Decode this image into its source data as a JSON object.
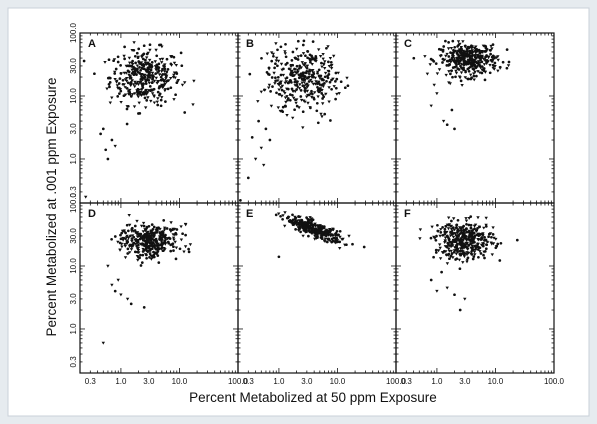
{
  "chart_data": {
    "type": "scatter",
    "xlabel": "Percent Metabolized at 50 ppm Exposure",
    "ylabel": "Percent Metabolized at .001 ppm Exposure",
    "xscale": "log",
    "yscale": "log",
    "xlim": [
      0.2,
      100
    ],
    "ylim": [
      0.2,
      100
    ],
    "x_tick_labels": [
      "0.3",
      "1.0",
      "3.0",
      "10.0",
      "100.0"
    ],
    "x_tick_values": [
      0.3,
      1,
      3,
      10,
      100
    ],
    "y_tick_labels": [
      "0.3",
      "1.0",
      "3.0",
      "10.0",
      "30.0",
      "100.0"
    ],
    "y_tick_values": [
      0.3,
      1,
      3,
      10,
      30,
      100
    ],
    "grid": false,
    "layout": "2 rows x 3 columns",
    "marker_color": "#111111",
    "panels": [
      {
        "label": "A",
        "cloud": {
          "x_center": 2.6,
          "y_center": 20,
          "x_spread": 0.3,
          "y_spread": 0.22,
          "n": 380
        },
        "outliers": [
          [
            0.25,
            0.25
          ],
          [
            0.45,
            2.5
          ],
          [
            0.6,
            1.0
          ],
          [
            0.55,
            1.4
          ],
          [
            0.5,
            3.0
          ],
          [
            0.7,
            2.0
          ],
          [
            0.8,
            1.6
          ]
        ]
      },
      {
        "label": "B",
        "cloud": {
          "x_center": 2.6,
          "y_center": 18,
          "x_spread": 0.32,
          "y_spread": 0.26,
          "n": 360
        },
        "outliers": [
          [
            0.22,
            0.22
          ],
          [
            0.3,
            0.5
          ],
          [
            0.4,
            1.0
          ],
          [
            0.35,
            2.2
          ],
          [
            0.5,
            1.5
          ],
          [
            0.6,
            3.0
          ],
          [
            0.45,
            4.0
          ],
          [
            0.7,
            2.0
          ],
          [
            0.55,
            0.8
          ]
        ]
      },
      {
        "label": "C",
        "cloud": {
          "x_center": 3.5,
          "y_center": 38,
          "x_spread": 0.25,
          "y_spread": 0.13,
          "n": 380
        },
        "outliers": [
          [
            0.8,
            7.0
          ],
          [
            1.0,
            11.0
          ],
          [
            1.3,
            4.0
          ],
          [
            1.5,
            3.5
          ],
          [
            2.0,
            3.0
          ],
          [
            1.8,
            6.0
          ],
          [
            0.9,
            15.0
          ]
        ]
      },
      {
        "label": "D",
        "cloud": {
          "x_center": 3.0,
          "y_center": 25,
          "x_spread": 0.25,
          "y_spread": 0.13,
          "n": 360
        },
        "outliers": [
          [
            0.5,
            0.6
          ],
          [
            0.6,
            10.0
          ],
          [
            0.9,
            6.0
          ],
          [
            0.8,
            4.0
          ],
          [
            1.0,
            3.5
          ],
          [
            1.3,
            3.0
          ],
          [
            1.5,
            2.5
          ],
          [
            2.5,
            2.2
          ],
          [
            0.7,
            5.0
          ]
        ]
      },
      {
        "label": "E",
        "cloud": {
          "x_center": 4.0,
          "y_center": 38,
          "x_spread": 0.24,
          "y_spread": 0.06,
          "n": 300,
          "slope": -0.35
        },
        "outliers": [
          [
            1.0,
            14.0
          ]
        ]
      },
      {
        "label": "F",
        "cloud": {
          "x_center": 3.0,
          "y_center": 25,
          "x_spread": 0.25,
          "y_spread": 0.15,
          "n": 380
        },
        "outliers": [
          [
            0.8,
            6.0
          ],
          [
            1.0,
            4.0
          ],
          [
            1.5,
            4.5
          ],
          [
            2.0,
            3.5
          ],
          [
            2.5,
            2.0
          ],
          [
            3.0,
            3.0
          ],
          [
            1.2,
            8.0
          ]
        ]
      }
    ]
  }
}
